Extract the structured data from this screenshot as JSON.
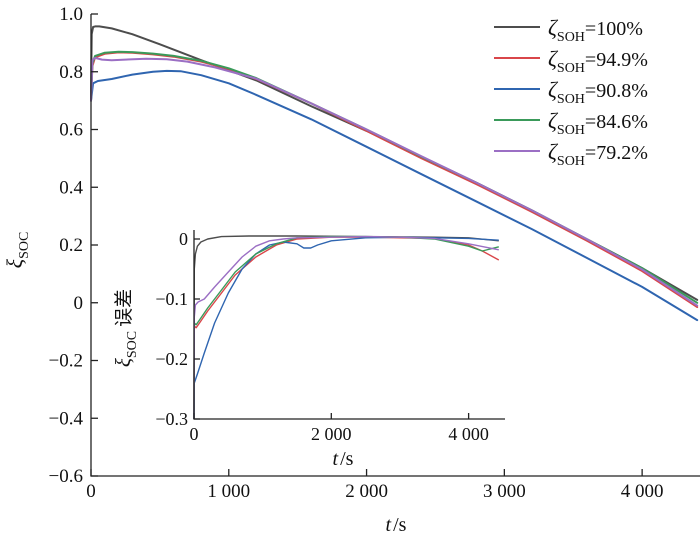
{
  "chart_data": [
    {
      "type": "line",
      "xlabel_var": "t",
      "xlabel_unit": "/s",
      "ylabel_var": "ξ",
      "ylabel_sub": "SOC",
      "xlim": [
        0,
        4420
      ],
      "ylim": [
        -0.6,
        1.0
      ],
      "xticks": [
        0,
        1000,
        2000,
        3000,
        4000
      ],
      "xtick_labels": [
        "0",
        "1 000",
        "2 000",
        "3 000",
        "4 000"
      ],
      "yticks": [
        1.0,
        0.8,
        0.6,
        0.4,
        0.2,
        0,
        -0.2,
        -0.4,
        -0.6
      ],
      "ytick_labels": [
        "1.0",
        "0.8",
        "0.6",
        "0.4",
        "0.2",
        "0",
        "−0.2",
        "−0.4",
        "−0.6"
      ],
      "legend_position": "top-right",
      "legend_symbol": "ζ",
      "legend_sub": "SOH",
      "series": [
        {
          "name": "=100%",
          "color": "#4d4d4d",
          "x": [
            0,
            5,
            15,
            30,
            60,
            150,
            300,
            500,
            800,
            1200,
            1600,
            2000,
            2400,
            2800,
            3200,
            3600,
            4000,
            4400
          ],
          "y": [
            0.7,
            0.93,
            0.955,
            0.957,
            0.957,
            0.95,
            0.93,
            0.895,
            0.84,
            0.77,
            0.68,
            0.595,
            0.505,
            0.415,
            0.32,
            0.22,
            0.12,
            0.01
          ]
        },
        {
          "name": "=94.9%",
          "color": "#d9464a",
          "x": [
            0,
            10,
            30,
            100,
            200,
            300,
            450,
            600,
            800,
            1000,
            1200,
            1600,
            2000,
            2400,
            2800,
            3200,
            3600,
            4000,
            4400
          ],
          "y": [
            0.7,
            0.82,
            0.85,
            0.862,
            0.867,
            0.866,
            0.86,
            0.852,
            0.835,
            0.81,
            0.775,
            0.69,
            0.595,
            0.5,
            0.41,
            0.315,
            0.215,
            0.11,
            -0.015
          ]
        },
        {
          "name": "=90.8%",
          "color": "#2f65b0",
          "x": [
            0,
            15,
            50,
            150,
            300,
            450,
            550,
            650,
            800,
            1000,
            1200,
            1600,
            2000,
            2400,
            2800,
            3200,
            3600,
            4000,
            4400
          ],
          "y": [
            0.7,
            0.76,
            0.768,
            0.775,
            0.79,
            0.8,
            0.803,
            0.802,
            0.788,
            0.76,
            0.72,
            0.635,
            0.54,
            0.445,
            0.35,
            0.255,
            0.155,
            0.055,
            -0.06
          ]
        },
        {
          "name": "=84.6%",
          "color": "#3a9a5a",
          "x": [
            0,
            10,
            30,
            100,
            200,
            300,
            450,
            600,
            800,
            1000,
            1200,
            1600,
            2000,
            2400,
            2800,
            3200,
            3600,
            4000,
            4400
          ],
          "y": [
            0.7,
            0.83,
            0.855,
            0.866,
            0.869,
            0.868,
            0.863,
            0.855,
            0.838,
            0.812,
            0.778,
            0.69,
            0.6,
            0.505,
            0.415,
            0.32,
            0.22,
            0.12,
            0.0
          ]
        },
        {
          "name": "=79.2%",
          "color": "#9b6fc4",
          "x": [
            0,
            10,
            30,
            80,
            150,
            250,
            400,
            550,
            700,
            900,
            1200,
            1600,
            2000,
            2400,
            2800,
            3200,
            3600,
            4000,
            4400
          ],
          "y": [
            0.7,
            0.84,
            0.848,
            0.842,
            0.84,
            0.842,
            0.845,
            0.843,
            0.835,
            0.815,
            0.776,
            0.69,
            0.6,
            0.507,
            0.415,
            0.32,
            0.22,
            0.115,
            -0.01
          ]
        }
      ]
    },
    {
      "type": "line",
      "xlabel_var": "t",
      "xlabel_unit": "/s",
      "ylabel_var": "ξ",
      "ylabel_sub": "SOC",
      "ylabel_suffix": "误差",
      "xlim": [
        0,
        4530
      ],
      "ylim": [
        -0.3,
        0.015
      ],
      "xticks": [
        0,
        2000,
        4000
      ],
      "xtick_labels": [
        "0",
        "2 000",
        "4 000"
      ],
      "yticks": [
        0,
        -0.1,
        -0.2,
        -0.3
      ],
      "ytick_labels": [
        "0",
        "−0.1",
        "−0.2",
        "−0.3"
      ],
      "series": [
        {
          "name": "=100%",
          "color": "#4d4d4d",
          "x": [
            0,
            5,
            20,
            50,
            100,
            200,
            400,
            800,
            1500,
            2500,
            3500,
            4000,
            4440
          ],
          "y": [
            -0.3,
            -0.05,
            -0.025,
            -0.012,
            -0.005,
            0.0,
            0.004,
            0.005,
            0.005,
            0.004,
            0.003,
            0.002,
            -0.003
          ]
        },
        {
          "name": "=94.9%",
          "color": "#d9464a",
          "x": [
            0,
            5,
            30,
            80,
            200,
            400,
            600,
            900,
            1200,
            1500,
            2000,
            2500,
            3000,
            3500,
            4000,
            4200,
            4440
          ],
          "y": [
            -0.3,
            -0.145,
            -0.148,
            -0.14,
            -0.12,
            -0.09,
            -0.06,
            -0.03,
            -0.01,
            0.0,
            0.003,
            0.003,
            0.002,
            0.001,
            -0.01,
            -0.02,
            -0.035
          ]
        },
        {
          "name": "=90.8%",
          "color": "#2f65b0",
          "x": [
            0,
            5,
            50,
            150,
            300,
            500,
            700,
            900,
            1100,
            1300,
            1500,
            1600,
            1700,
            1800,
            2000,
            2500,
            3000,
            3500,
            4000,
            4440
          ],
          "y": [
            -0.3,
            -0.24,
            -0.225,
            -0.19,
            -0.14,
            -0.09,
            -0.05,
            -0.025,
            -0.01,
            -0.005,
            -0.008,
            -0.015,
            -0.015,
            -0.01,
            -0.003,
            0.002,
            0.003,
            0.002,
            0.001,
            -0.002
          ]
        },
        {
          "name": "=84.6%",
          "color": "#3a9a5a",
          "x": [
            0,
            5,
            30,
            80,
            200,
            400,
            600,
            900,
            1200,
            1500,
            2000,
            2500,
            3000,
            3500,
            4000,
            4200,
            4440
          ],
          "y": [
            -0.3,
            -0.14,
            -0.143,
            -0.135,
            -0.115,
            -0.085,
            -0.055,
            -0.025,
            -0.008,
            0.002,
            0.004,
            0.004,
            0.003,
            0.0,
            -0.012,
            -0.02,
            -0.013
          ]
        },
        {
          "name": "=79.2%",
          "color": "#9b6fc4",
          "x": [
            0,
            5,
            20,
            60,
            150,
            300,
            500,
            700,
            900,
            1100,
            1300,
            1500,
            2000,
            2500,
            3000,
            3500,
            4000,
            4440
          ],
          "y": [
            -0.3,
            -0.13,
            -0.11,
            -0.105,
            -0.1,
            -0.08,
            -0.055,
            -0.03,
            -0.012,
            -0.003,
            0.0,
            0.002,
            0.003,
            0.004,
            0.003,
            0.001,
            -0.008,
            -0.018
          ]
        }
      ]
    }
  ]
}
